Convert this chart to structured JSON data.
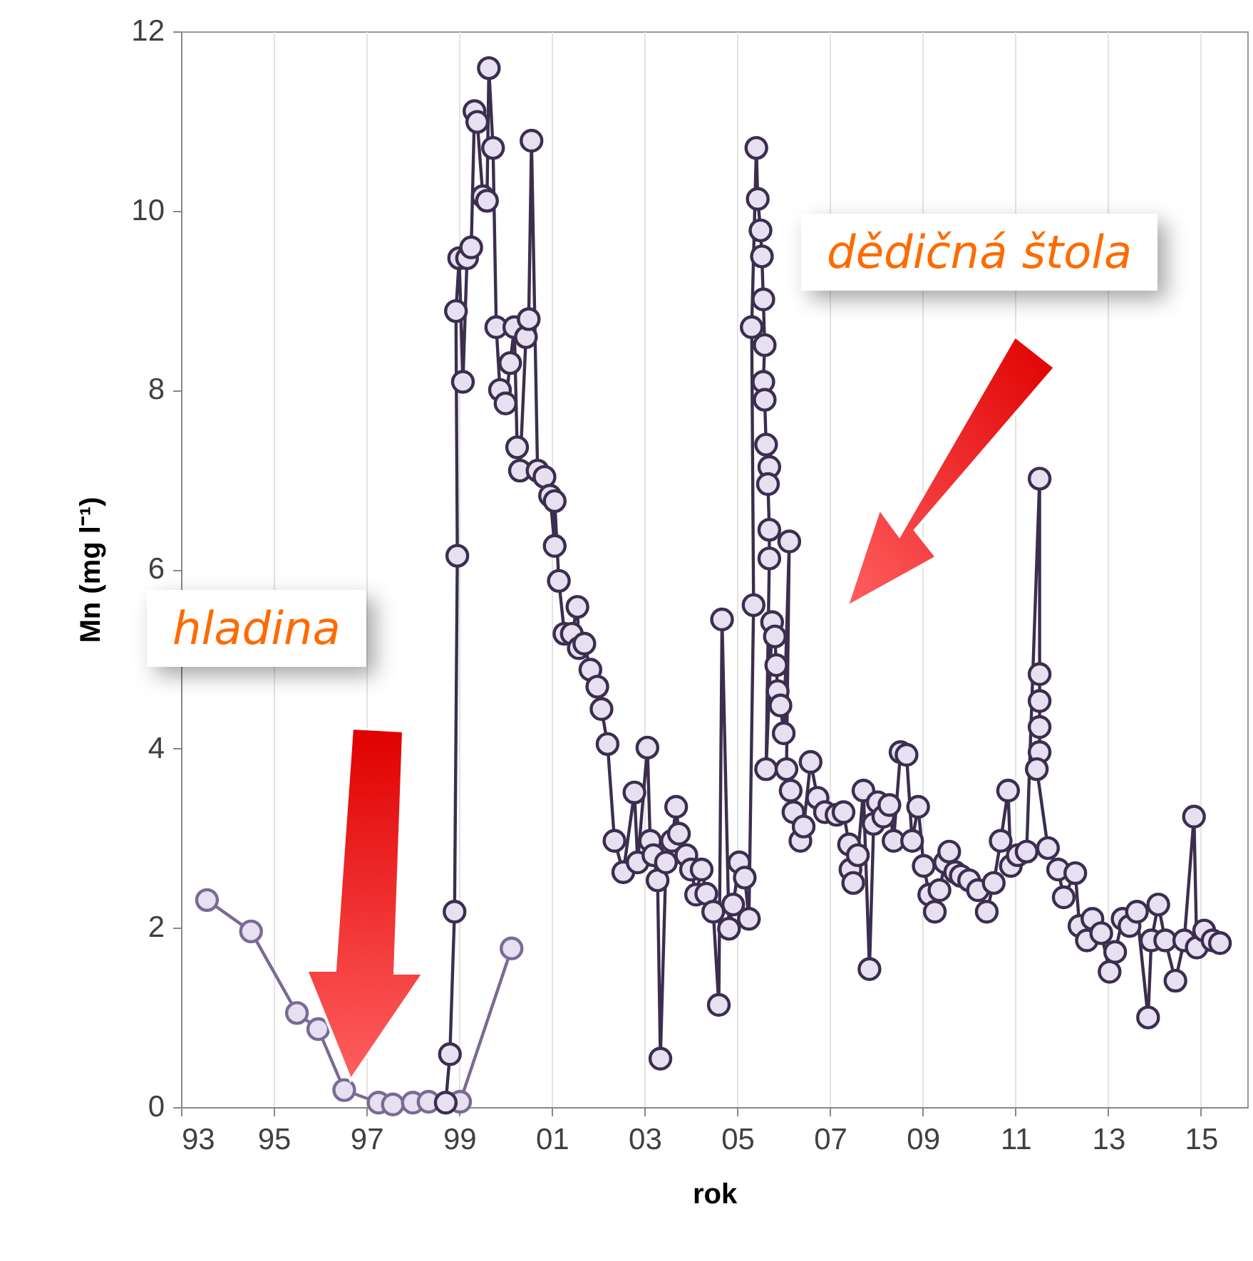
{
  "chart_data": {
    "type": "line",
    "xlabel": "rok",
    "ylabel": "Mn (mg l⁻¹)",
    "xlim": [
      1993,
      2016
    ],
    "xticks": [
      {
        "value": 1993,
        "label": "93"
      },
      {
        "value": 1995,
        "label": "95"
      },
      {
        "value": 1997,
        "label": "97"
      },
      {
        "value": 1999,
        "label": "99"
      },
      {
        "value": 2001,
        "label": "01"
      },
      {
        "value": 2003,
        "label": "03"
      },
      {
        "value": 2005,
        "label": "05"
      },
      {
        "value": 2007,
        "label": "07"
      },
      {
        "value": 2009,
        "label": "09"
      },
      {
        "value": 2011,
        "label": "11"
      },
      {
        "value": 2013,
        "label": "13"
      },
      {
        "value": 2015,
        "label": "15"
      }
    ],
    "ylim": [
      0,
      12
    ],
    "yticks": [
      0,
      2,
      4,
      6,
      8,
      10,
      12
    ],
    "grid": "x",
    "marker": "circle",
    "line_style": "solid",
    "annotations": [
      "hladina",
      "dědičná štola"
    ],
    "series": [
      {
        "color": "#7a6a96",
        "x": [
          1993.56,
          1994.51,
          1995.5,
          1995.96,
          1996.52,
          1997.26,
          1997.57,
          1998.0,
          1998.34,
          1999.02,
          2000.13
        ],
        "values": [
          2.31,
          1.96,
          1.05,
          0.87,
          0.19,
          0.05,
          0.03,
          0.05,
          0.06,
          0.06,
          1.77
        ]
      },
      {
        "color": "#3b2e4f",
        "x": [
          1998.71,
          1998.8,
          1998.9,
          1998.96,
          1998.93,
          1999.0,
          1999.08,
          1999.17,
          1999.26,
          1999.33,
          1999.39,
          1999.51,
          1999.6,
          1999.64,
          1999.73,
          1999.8,
          1999.88,
          2000.0,
          2000.1,
          2000.19,
          2000.25,
          2000.31,
          2000.44,
          2000.5,
          2000.56,
          2000.69,
          2000.84,
          2000.96,
          2001.06,
          2001.06,
          2001.15,
          2001.27,
          2001.43,
          2001.55,
          2001.58,
          2001.7,
          2001.83,
          2001.98,
          2002.07,
          2002.2,
          2002.35,
          2002.54,
          2002.78,
          2002.85,
          2003.06,
          2003.12,
          2003.19,
          2003.28,
          2003.34,
          2003.46,
          2003.59,
          2003.68,
          2003.74,
          2003.9,
          2004.0,
          2004.11,
          2004.23,
          2004.33,
          2004.48,
          2004.6,
          2004.67,
          2004.82,
          2004.91,
          2005.04,
          2005.16,
          2005.25,
          2005.35,
          2005.31,
          2005.41,
          2005.44,
          2005.5,
          2005.53,
          2005.56,
          2005.59,
          2005.56,
          2005.59,
          2005.62,
          2005.69,
          2005.66,
          2005.69,
          2005.69,
          2005.62,
          2005.75,
          2005.81,
          2005.84,
          2005.87,
          2005.93,
          2006.0,
          2006.12,
          2006.06,
          2006.15,
          2006.21,
          2006.36,
          2006.43,
          2006.58,
          2006.73,
          2006.89,
          2007.14,
          2007.29,
          2007.41,
          2007.44,
          2007.5,
          2007.6,
          2007.72,
          2007.85,
          2007.94,
          2008.03,
          2008.15,
          2008.28,
          2008.37,
          2008.52,
          2008.65,
          2008.77,
          2008.9,
          2009.02,
          2009.14,
          2009.26,
          2009.36,
          2009.48,
          2009.57,
          2009.7,
          2009.82,
          2010.0,
          2010.19,
          2010.38,
          2010.53,
          2010.68,
          2010.84,
          2010.9,
          2011.05,
          2011.24,
          2011.52,
          2011.52,
          2011.52,
          2011.52,
          2011.52,
          2011.46,
          2011.7,
          2011.92,
          2012.04,
          2012.29,
          2012.38,
          2012.54,
          2012.66,
          2012.85,
          2013.03,
          2013.15,
          2013.31,
          2013.46,
          2013.62,
          2013.86,
          2013.93,
          2014.08,
          2014.23,
          2014.45,
          2014.64,
          2014.85,
          2014.91,
          2015.07,
          2015.25,
          2015.41
        ],
        "values": [
          0.05,
          0.59,
          2.18,
          6.15,
          8.88,
          9.47,
          8.09,
          9.47,
          9.59,
          11.11,
          10.99,
          10.16,
          10.11,
          11.59,
          10.7,
          8.7,
          8.0,
          7.85,
          8.3,
          8.7,
          7.36,
          7.1,
          8.59,
          8.79,
          10.78,
          7.1,
          7.03,
          6.82,
          6.26,
          6.76,
          5.87,
          5.28,
          5.28,
          5.58,
          5.12,
          5.17,
          4.88,
          4.69,
          4.44,
          4.05,
          2.97,
          2.62,
          3.51,
          2.73,
          4.01,
          2.97,
          2.81,
          2.53,
          0.54,
          2.73,
          2.97,
          3.35,
          3.05,
          2.81,
          2.65,
          2.37,
          2.65,
          2.38,
          2.18,
          1.14,
          5.44,
          1.99,
          2.26,
          2.73,
          2.56,
          2.1,
          5.6,
          8.7,
          10.7,
          10.13,
          9.78,
          9.49,
          9.01,
          8.5,
          8.09,
          7.89,
          7.39,
          7.14,
          6.95,
          6.44,
          6.12,
          3.77,
          5.41,
          5.25,
          4.93,
          4.64,
          4.48,
          4.17,
          6.31,
          3.77,
          3.53,
          3.29,
          2.97,
          3.13,
          3.85,
          3.45,
          3.29,
          3.26,
          3.29,
          2.93,
          2.65,
          2.5,
          2.81,
          3.53,
          1.54,
          3.16,
          3.4,
          3.24,
          3.37,
          2.97,
          3.96,
          3.93,
          2.97,
          3.35,
          2.69,
          2.37,
          2.18,
          2.42,
          2.73,
          2.85,
          2.62,
          2.58,
          2.53,
          2.42,
          2.18,
          2.5,
          2.97,
          3.53,
          2.69,
          2.81,
          2.85,
          7.01,
          4.83,
          4.53,
          4.24,
          3.96,
          3.77,
          2.89,
          2.65,
          2.34,
          2.61,
          2.02,
          1.86,
          2.1,
          1.94,
          1.51,
          1.73,
          2.1,
          2.02,
          2.18,
          1.0,
          1.86,
          2.26,
          1.86,
          1.41,
          1.86,
          3.24,
          1.78,
          1.97,
          1.86,
          1.83
        ]
      }
    ]
  }
}
